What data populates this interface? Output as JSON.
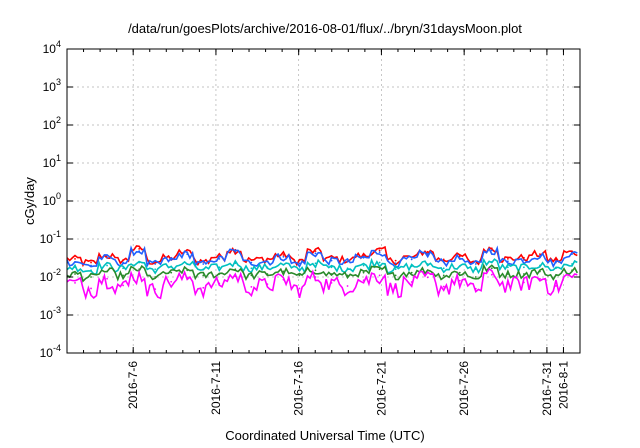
{
  "chart_data": {
    "type": "line",
    "title": "/data/run/goesPlots/archive/2016-08-01/flux/../bryn/31daysMoon.plot",
    "xlabel": "Coordinated Universal Time (UTC)",
    "ylabel": "cGy/day",
    "yscale": "log",
    "ylim": [
      0.0001,
      10000
    ],
    "y_tick_labels": [
      {
        "base": "10",
        "exp": "-4",
        "value": 0.0001
      },
      {
        "base": "10",
        "exp": "-3",
        "value": 0.001
      },
      {
        "base": "10",
        "exp": "-2",
        "value": 0.01
      },
      {
        "base": "10",
        "exp": "-1",
        "value": 0.1
      },
      {
        "base": "10",
        "exp": "0",
        "value": 1
      },
      {
        "base": "10",
        "exp": "1",
        "value": 10
      },
      {
        "base": "10",
        "exp": "2",
        "value": 100
      },
      {
        "base": "10",
        "exp": "3",
        "value": 1000
      },
      {
        "base": "10",
        "exp": "4",
        "value": 10000
      }
    ],
    "xlim": [
      "2016-07-02",
      "2016-08-02"
    ],
    "x_ticks": [
      {
        "label": "2016-7-6",
        "date": "2016-07-06"
      },
      {
        "label": "2016-7-11",
        "date": "2016-07-11"
      },
      {
        "label": "2016-7-16",
        "date": "2016-07-16"
      },
      {
        "label": "2016-7-21",
        "date": "2016-07-21"
      },
      {
        "label": "2016-7-26",
        "date": "2016-07-26"
      },
      {
        "label": "2016-7-31",
        "date": "2016-07-31"
      },
      {
        "label": "2016-8-1",
        "date": "2016-08-01"
      }
    ],
    "grid": true,
    "series": [
      {
        "color": "#ff0000",
        "values": [
          0.03,
          0.024,
          0.036,
          0.028,
          0.055,
          0.026,
          0.032,
          0.045,
          0.026,
          0.034,
          0.052,
          0.028,
          0.03,
          0.038,
          0.027,
          0.048,
          0.031,
          0.029,
          0.036,
          0.05,
          0.027,
          0.033,
          0.046,
          0.029,
          0.035,
          0.026,
          0.057,
          0.03,
          0.032,
          0.04,
          0.028,
          0.044
        ]
      },
      {
        "color": "#2060ff",
        "values": [
          0.025,
          0.02,
          0.032,
          0.024,
          0.048,
          0.022,
          0.028,
          0.04,
          0.022,
          0.03,
          0.046,
          0.024,
          0.026,
          0.034,
          0.023,
          0.042,
          0.027,
          0.025,
          0.032,
          0.045,
          0.023,
          0.029,
          0.041,
          0.025,
          0.031,
          0.022,
          0.05,
          0.026,
          0.028,
          0.036,
          0.024,
          0.04
        ]
      },
      {
        "color": "#00c0c0",
        "values": [
          0.018,
          0.015,
          0.02,
          0.017,
          0.024,
          0.016,
          0.019,
          0.022,
          0.016,
          0.018,
          0.023,
          0.017,
          0.018,
          0.021,
          0.016,
          0.023,
          0.018,
          0.017,
          0.02,
          0.024,
          0.016,
          0.019,
          0.022,
          0.017,
          0.019,
          0.016,
          0.025,
          0.018,
          0.018,
          0.02,
          0.017,
          0.022
        ]
      },
      {
        "color": "#2a8a2a",
        "values": [
          0.012,
          0.01,
          0.014,
          0.011,
          0.016,
          0.01,
          0.013,
          0.015,
          0.011,
          0.012,
          0.016,
          0.011,
          0.012,
          0.014,
          0.011,
          0.015,
          0.012,
          0.011,
          0.013,
          0.016,
          0.011,
          0.013,
          0.015,
          0.011,
          0.013,
          0.01,
          0.017,
          0.012,
          0.012,
          0.014,
          0.011,
          0.015
        ]
      },
      {
        "color": "#ff00ff",
        "values": [
          0.007,
          0.005,
          0.009,
          0.006,
          0.011,
          0.0048,
          0.0075,
          0.0095,
          0.0052,
          0.0068,
          0.0105,
          0.0055,
          0.0065,
          0.0085,
          0.005,
          0.01,
          0.007,
          0.0058,
          0.0082,
          0.011,
          0.0052,
          0.0074,
          0.0098,
          0.0056,
          0.008,
          0.0049,
          0.0115,
          0.0066,
          0.0072,
          0.009,
          0.0058,
          0.01
        ]
      }
    ]
  }
}
